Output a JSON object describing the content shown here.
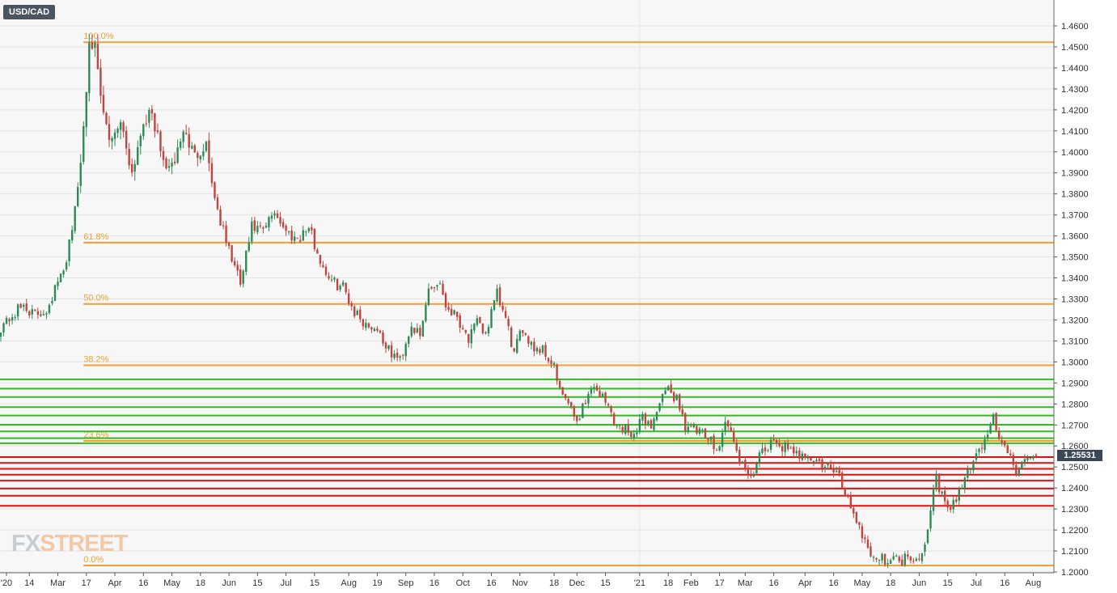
{
  "chart_data": {
    "type": "candlestick",
    "symbol": "USD/CAD",
    "last_price": "1.25531",
    "y_range": [
      1.2,
      1.465
    ],
    "y_ticks": [
      "1.4600",
      "1.4500",
      "1.4400",
      "1.4300",
      "1.4200",
      "1.4100",
      "1.4000",
      "1.3900",
      "1.3800",
      "1.3700",
      "1.3600",
      "1.3500",
      "1.3400",
      "1.3300",
      "1.3200",
      "1.3100",
      "1.3000",
      "1.2900",
      "1.2800",
      "1.2700",
      "1.2600",
      "1.2500",
      "1.2400",
      "1.2300",
      "1.2200",
      "1.2100",
      "1.2000"
    ],
    "x_ticks": [
      {
        "label": "'20",
        "idx": 0
      },
      {
        "label": "14",
        "idx": 10
      },
      {
        "label": "Mar",
        "idx": 20
      },
      {
        "label": "17",
        "idx": 30
      },
      {
        "label": "Apr",
        "idx": 40
      },
      {
        "label": "16",
        "idx": 50
      },
      {
        "label": "May",
        "idx": 60
      },
      {
        "label": "18",
        "idx": 70
      },
      {
        "label": "Jun",
        "idx": 80
      },
      {
        "label": "15",
        "idx": 90
      },
      {
        "label": "Jul",
        "idx": 100
      },
      {
        "label": "15",
        "idx": 110
      },
      {
        "label": "Aug",
        "idx": 122
      },
      {
        "label": "19",
        "idx": 132
      },
      {
        "label": "Sep",
        "idx": 142
      },
      {
        "label": "16",
        "idx": 152
      },
      {
        "label": "Oct",
        "idx": 162
      },
      {
        "label": "16",
        "idx": 172
      },
      {
        "label": "Nov",
        "idx": 182
      },
      {
        "label": "18",
        "idx": 194
      },
      {
        "label": "Dec",
        "idx": 202
      },
      {
        "label": "15",
        "idx": 212
      },
      {
        "label": "'21",
        "idx": 224
      },
      {
        "label": "18",
        "idx": 234
      },
      {
        "label": "Feb",
        "idx": 242
      },
      {
        "label": "17",
        "idx": 252
      },
      {
        "label": "Mar",
        "idx": 261
      },
      {
        "label": "16",
        "idx": 271
      },
      {
        "label": "Apr",
        "idx": 282
      },
      {
        "label": "16",
        "idx": 292
      },
      {
        "label": "May",
        "idx": 302
      },
      {
        "label": "18",
        "idx": 312
      },
      {
        "label": "Jun",
        "idx": 322
      },
      {
        "label": "15",
        "idx": 332
      },
      {
        "label": "Jul",
        "idx": 342
      },
      {
        "label": "16",
        "idx": 352
      },
      {
        "label": "Aug",
        "idx": 362
      }
    ],
    "vertical_gridlines_at": [
      224
    ],
    "fibonacci_levels": [
      {
        "label": "100.0%",
        "price": 1.4522
      },
      {
        "label": "61.8%",
        "price": 1.3568
      },
      {
        "label": "50.0%",
        "price": 1.3276
      },
      {
        "label": "38.2%",
        "price": 1.2984
      },
      {
        "label": "23.6%",
        "price": 1.2624
      },
      {
        "label": "0.0%",
        "price": 1.2031
      }
    ],
    "support_levels_green": [
      1.2917,
      1.2873,
      1.2833,
      1.2785,
      1.2745,
      1.2701,
      1.2669,
      1.2637,
      1.2613
    ],
    "resistance_levels_red": [
      1.2547,
      1.2519,
      1.2491,
      1.2463,
      1.2435,
      1.2397,
      1.2363,
      1.2315
    ],
    "anchors": [
      [
        0,
        1.317
      ],
      [
        8,
        1.327
      ],
      [
        12,
        1.322
      ],
      [
        16,
        1.325
      ],
      [
        20,
        1.338
      ],
      [
        22,
        1.342
      ],
      [
        24,
        1.358
      ],
      [
        26,
        1.372
      ],
      [
        28,
        1.395
      ],
      [
        30,
        1.43
      ],
      [
        31,
        1.455
      ],
      [
        33,
        1.449
      ],
      [
        35,
        1.425
      ],
      [
        38,
        1.405
      ],
      [
        42,
        1.415
      ],
      [
        46,
        1.39
      ],
      [
        50,
        1.415
      ],
      [
        53,
        1.418
      ],
      [
        57,
        1.395
      ],
      [
        60,
        1.392
      ],
      [
        64,
        1.41
      ],
      [
        68,
        1.398
      ],
      [
        72,
        1.404
      ],
      [
        75,
        1.378
      ],
      [
        78,
        1.362
      ],
      [
        82,
        1.345
      ],
      [
        84,
        1.337
      ],
      [
        88,
        1.364
      ],
      [
        92,
        1.362
      ],
      [
        96,
        1.372
      ],
      [
        100,
        1.362
      ],
      [
        104,
        1.359
      ],
      [
        108,
        1.364
      ],
      [
        112,
        1.348
      ],
      [
        116,
        1.338
      ],
      [
        120,
        1.336
      ],
      [
        124,
        1.324
      ],
      [
        128,
        1.318
      ],
      [
        132,
        1.316
      ],
      [
        136,
        1.305
      ],
      [
        140,
        1.301
      ],
      [
        144,
        1.318
      ],
      [
        147,
        1.311
      ],
      [
        150,
        1.335
      ],
      [
        154,
        1.338
      ],
      [
        156,
        1.327
      ],
      [
        160,
        1.322
      ],
      [
        164,
        1.311
      ],
      [
        167,
        1.318
      ],
      [
        170,
        1.314
      ],
      [
        174,
        1.332
      ],
      [
        177,
        1.32
      ],
      [
        180,
        1.304
      ],
      [
        183,
        1.316
      ],
      [
        187,
        1.307
      ],
      [
        190,
        1.306
      ],
      [
        194,
        1.298
      ],
      [
        196,
        1.285
      ],
      [
        198,
        1.283
      ],
      [
        200,
        1.276
      ],
      [
        202,
        1.272
      ],
      [
        205,
        1.282
      ],
      [
        208,
        1.289
      ],
      [
        211,
        1.283
      ],
      [
        214,
        1.276
      ],
      [
        216,
        1.269
      ],
      [
        220,
        1.268
      ],
      [
        223,
        1.265
      ],
      [
        225,
        1.275
      ],
      [
        228,
        1.269
      ],
      [
        231,
        1.281
      ],
      [
        234,
        1.286
      ],
      [
        237,
        1.283
      ],
      [
        240,
        1.27
      ],
      [
        243,
        1.268
      ],
      [
        246,
        1.265
      ],
      [
        249,
        1.262
      ],
      [
        252,
        1.26
      ],
      [
        254,
        1.272
      ],
      [
        256,
        1.266
      ],
      [
        258,
        1.257
      ],
      [
        260,
        1.251
      ],
      [
        262,
        1.243
      ],
      [
        265,
        1.252
      ],
      [
        268,
        1.258
      ],
      [
        272,
        1.262
      ],
      [
        275,
        1.259
      ],
      [
        278,
        1.255
      ],
      [
        282,
        1.257
      ],
      [
        286,
        1.252
      ],
      [
        290,
        1.25
      ],
      [
        294,
        1.245
      ],
      [
        296,
        1.238
      ],
      [
        298,
        1.232
      ],
      [
        300,
        1.225
      ],
      [
        303,
        1.215
      ],
      [
        306,
        1.207
      ],
      [
        309,
        1.206
      ],
      [
        312,
        1.207
      ],
      [
        315,
        1.205
      ],
      [
        318,
        1.208
      ],
      [
        321,
        1.207
      ],
      [
        324,
        1.212
      ],
      [
        326,
        1.232
      ],
      [
        328,
        1.245
      ],
      [
        330,
        1.236
      ],
      [
        333,
        1.228
      ],
      [
        336,
        1.238
      ],
      [
        339,
        1.248
      ],
      [
        342,
        1.256
      ],
      [
        345,
        1.262
      ],
      [
        348,
        1.275
      ],
      [
        350,
        1.262
      ],
      [
        352,
        1.258
      ],
      [
        354,
        1.256
      ],
      [
        356,
        1.248
      ],
      [
        359,
        1.251
      ],
      [
        362,
        1.255
      ],
      [
        363,
        1.2553
      ]
    ]
  },
  "branding": {
    "logo_main": "FX",
    "logo_accent": "STREET"
  },
  "colors": {
    "bull": "#2e8b57",
    "bear": "#c0453f",
    "fib": "#f0a030",
    "support": "#33bb22",
    "resistance": "#dd1111",
    "plot_bg": "#f7f7f7",
    "grid": "#e3e3e3",
    "axis_text": "#333333",
    "price_badge": "#3b4756"
  }
}
